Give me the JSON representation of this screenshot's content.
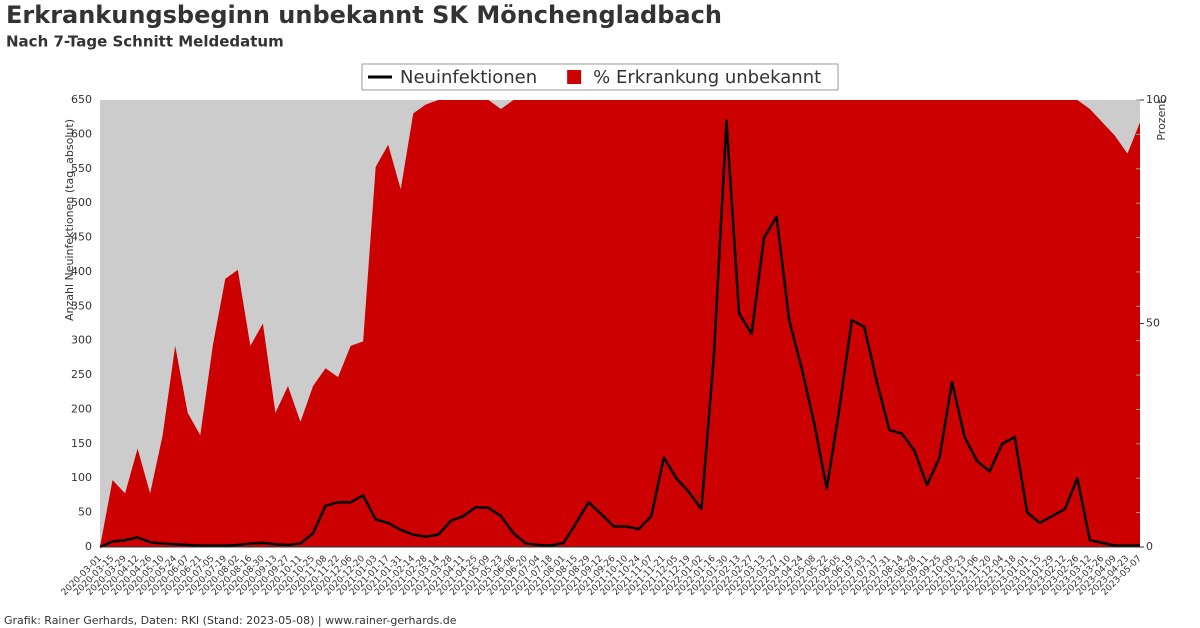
{
  "chart_data": {
    "type": "line-area",
    "title": "Erkrankungsbeginn unbekannt SK Mönchengladbach",
    "subtitle": "Nach 7-Tage Schnitt Meldedatum",
    "y_label": "Anzahl Neuinfektionen (tag. absolut)",
    "y2_label": "Prozent",
    "footer": "Grafik: Rainer Gerhards, Daten: RKI (Stand: 2023-05-08) | www.rainer-gerhards.de",
    "background": "#cccccc",
    "categories": [
      "2020-03-01",
      "2020-03-15",
      "2020-03-29",
      "2020-04-12",
      "2020-04-26",
      "2020-05-10",
      "2020-05-24",
      "2020-06-07",
      "2020-06-21",
      "2020-07-05",
      "2020-07-19",
      "2020-08-02",
      "2020-08-16",
      "2020-08-30",
      "2020-09-13",
      "2020-09-27",
      "2020-10-11",
      "2020-10-25",
      "2020-11-08",
      "2020-11-22",
      "2020-12-06",
      "2020-12-20",
      "2021-01-03",
      "2021-01-17",
      "2021-01-31",
      "2021-02-14",
      "2021-02-28",
      "2021-03-14",
      "2021-03-28",
      "2021-04-11",
      "2021-04-25",
      "2021-05-09",
      "2021-05-23",
      "2021-06-06",
      "2021-06-20",
      "2021-07-04",
      "2021-07-18",
      "2021-08-01",
      "2021-08-15",
      "2021-08-29",
      "2021-09-12",
      "2021-09-26",
      "2021-10-10",
      "2021-10-24",
      "2021-11-07",
      "2021-11-21",
      "2021-12-05",
      "2021-12-19",
      "2022-01-02",
      "2022-01-16",
      "2022-01-30",
      "2022-02-13",
      "2022-02-27",
      "2022-03-13",
      "2022-03-27",
      "2022-04-10",
      "2022-04-24",
      "2022-05-08",
      "2022-05-22",
      "2022-06-05",
      "2022-06-19",
      "2022-07-03",
      "2022-07-17",
      "2022-07-31",
      "2022-08-14",
      "2022-08-28",
      "2022-09-11",
      "2022-09-25",
      "2022-10-09",
      "2022-10-23",
      "2022-11-06",
      "2022-11-20",
      "2022-12-04",
      "2022-12-18",
      "2023-01-01",
      "2023-01-15",
      "2023-01-29",
      "2023-02-12",
      "2023-02-26",
      "2023-03-12",
      "2023-03-26",
      "2023-04-09",
      "2023-04-23",
      "2023-05-07"
    ],
    "series": [
      {
        "name": "% Erkrankung unbekannt",
        "type": "area",
        "axis": "y2",
        "color": "#cc0000",
        "values": [
          0,
          15,
          12,
          22,
          12,
          25,
          45,
          30,
          25,
          45,
          60,
          62,
          45,
          50,
          30,
          36,
          28,
          36,
          40,
          38,
          45,
          46,
          85,
          90,
          80,
          97,
          99,
          100,
          100,
          100,
          100,
          100,
          98,
          100,
          100,
          100,
          100,
          100,
          100,
          100,
          100,
          100,
          100,
          100,
          100,
          100,
          100,
          100,
          100,
          100,
          100,
          100,
          100,
          100,
          100,
          100,
          100,
          100,
          100,
          100,
          100,
          100,
          100,
          100,
          100,
          100,
          100,
          100,
          100,
          100,
          100,
          100,
          100,
          100,
          100,
          100,
          100,
          100,
          100,
          98,
          95,
          92,
          88,
          95
        ]
      },
      {
        "name": "Neuinfektionen",
        "type": "line",
        "color": "#000000",
        "values": [
          0,
          8,
          10,
          14,
          7,
          5,
          4,
          3,
          2,
          2,
          2,
          3,
          5,
          6,
          4,
          3,
          5,
          20,
          60,
          65,
          65,
          75,
          40,
          35,
          25,
          18,
          15,
          18,
          38,
          45,
          58,
          57,
          45,
          20,
          5,
          3,
          2,
          6,
          35,
          65,
          48,
          30,
          30,
          26,
          45,
          130,
          100,
          80,
          55,
          280,
          620,
          340,
          310,
          450,
          480,
          330,
          260,
          180,
          85,
          200,
          330,
          320,
          240,
          170,
          165,
          140,
          90,
          130,
          240,
          160,
          125,
          110,
          150,
          160,
          50,
          35,
          45,
          55,
          100,
          10,
          6,
          2,
          2,
          2
        ]
      }
    ],
    "ylim": [
      0,
      650
    ],
    "yticks": [
      0,
      50,
      100,
      150,
      200,
      250,
      300,
      350,
      400,
      450,
      500,
      550,
      600,
      650
    ],
    "y2lim": [
      0,
      100
    ],
    "y2ticks": [
      0,
      50,
      100
    ],
    "grid": true
  }
}
